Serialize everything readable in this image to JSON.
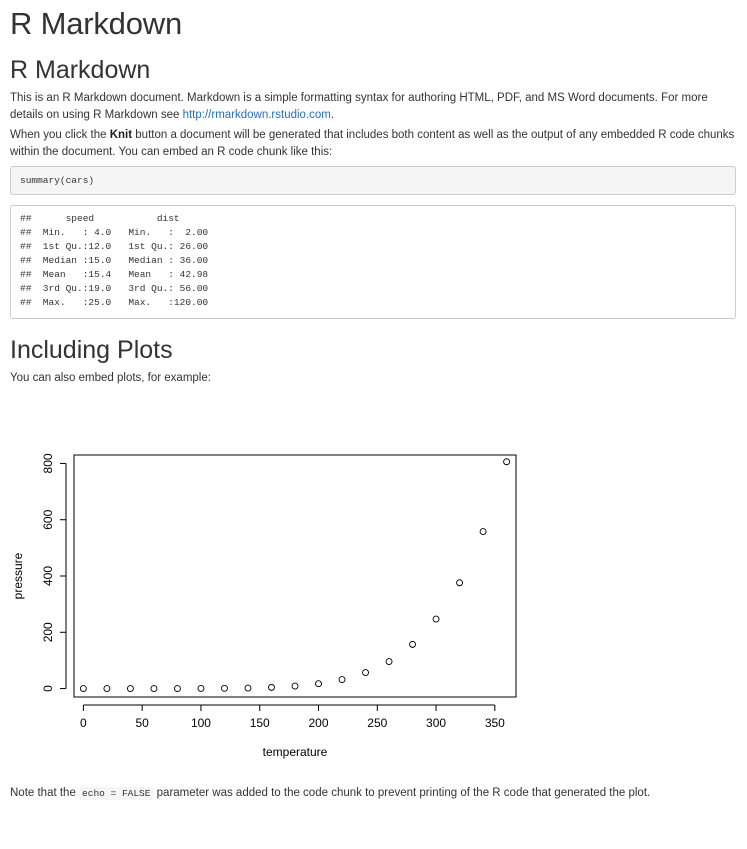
{
  "title": "R Markdown",
  "section1": {
    "heading": "R Markdown",
    "para1_text": "This is an R Markdown document. Markdown is a simple formatting syntax for authoring HTML, PDF, and MS Word documents. For more details on using R Markdown see ",
    "para1_link": "http://rmarkdown.rstudio.com",
    "para1_end": ".",
    "para2_pre": "When you click the ",
    "para2_bold": "Knit",
    "para2_post": " button a document will be generated that includes both content as well as the output of any embedded R code chunks within the document. You can embed an R code chunk like this:",
    "code": "summary(cars)",
    "output": "##      speed           dist       \n##  Min.   : 4.0   Min.   :  2.00  \n##  1st Qu.:12.0   1st Qu.: 26.00  \n##  Median :15.0   Median : 36.00  \n##  Mean   :15.4   Mean   : 42.98  \n##  3rd Qu.:19.0   3rd Qu.: 56.00  \n##  Max.   :25.0   Max.   :120.00  "
  },
  "section2": {
    "heading": "Including Plots",
    "para": "You can also embed plots, for example:",
    "note_pre": "Note that the ",
    "note_code": "echo = FALSE",
    "note_post": " parameter was added to the code chunk to prevent printing of the R code that generated the plot."
  },
  "chart_data": {
    "type": "scatter",
    "xlabel": "temperature",
    "ylabel": "pressure",
    "xlim": [
      -8,
      368
    ],
    "ylim": [
      -30,
      830
    ],
    "xticks": [
      0,
      50,
      100,
      150,
      200,
      250,
      300,
      350
    ],
    "yticks": [
      0,
      200,
      400,
      600,
      800
    ],
    "x": [
      0,
      20,
      40,
      60,
      80,
      100,
      120,
      140,
      160,
      180,
      200,
      220,
      240,
      260,
      280,
      300,
      320,
      340,
      360
    ],
    "y": [
      0.0002,
      0.0012,
      0.006,
      0.03,
      0.09,
      0.27,
      0.75,
      1.85,
      4.2,
      8.8,
      17.3,
      32.1,
      57,
      96,
      157,
      247,
      376,
      558,
      806
    ],
    "grid": false,
    "marker": "open-circle"
  }
}
